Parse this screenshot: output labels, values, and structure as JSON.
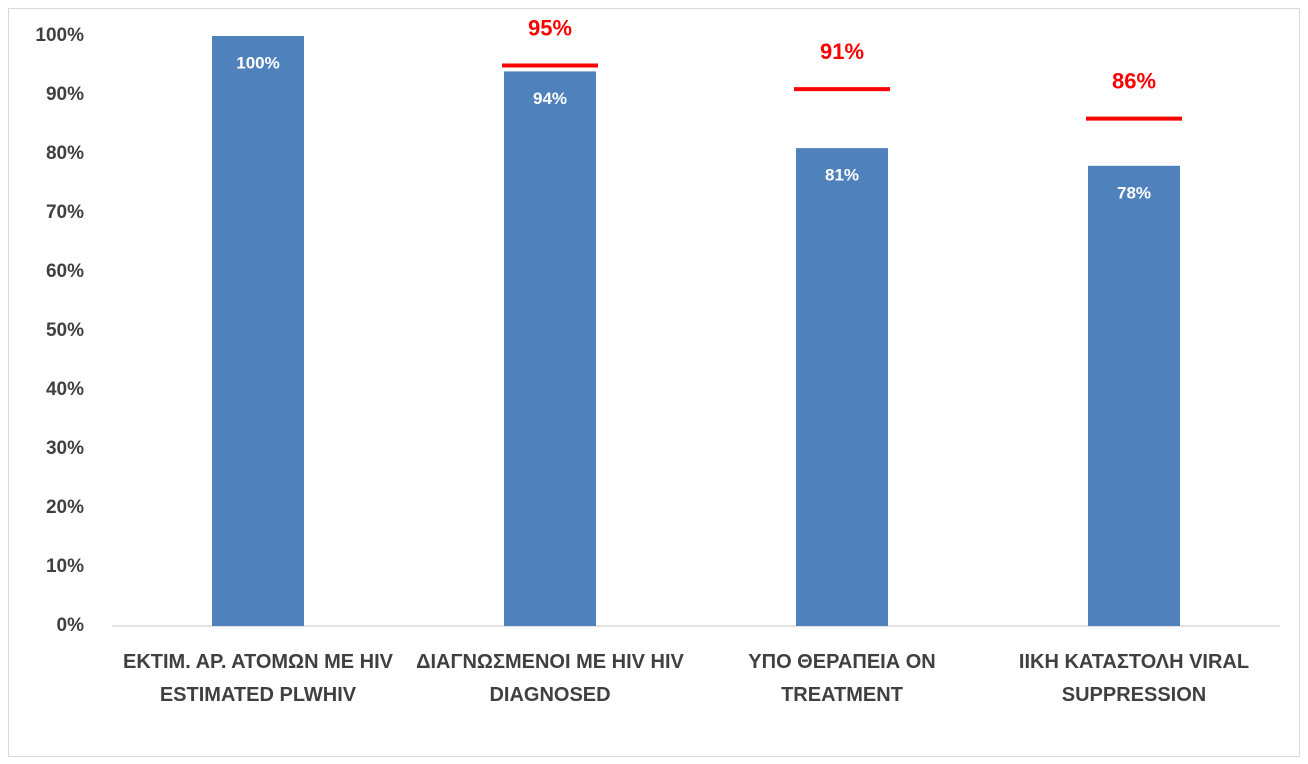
{
  "chart_data": {
    "type": "bar",
    "categories": [
      "ΕΚΤΙΜ. ΑΡ. ΑΤΟΜΩΝ ΜΕ HIV ESTIMATED PLWHIV",
      "ΔΙΑΓΝΩΣΜΕΝΟΙ ΜΕ HIV HIV DIAGNOSED",
      "ΥΠΟ ΘΕΡΑΠΕΙΑ ON TREATMENT",
      "ΙΙΚΗ ΚΑΤΑΣΤΟΛΗ VIRAL SUPPRESSION"
    ],
    "values": [
      100,
      94,
      81,
      78
    ],
    "value_labels": [
      "100%",
      "94%",
      "81%",
      "78%"
    ],
    "color": "#4f81bd",
    "targets": [
      null,
      95,
      91,
      86
    ],
    "target_labels": [
      null,
      "95%",
      "91%",
      "86%"
    ],
    "target_color": "#ff0000",
    "ylim": [
      0,
      100
    ],
    "yticks": [
      {
        "value": 0,
        "label": "0%"
      },
      {
        "value": 10,
        "label": "10%"
      },
      {
        "value": 20,
        "label": "20%"
      },
      {
        "value": 30,
        "label": "30%"
      },
      {
        "value": 40,
        "label": "40%"
      },
      {
        "value": 50,
        "label": "50%"
      },
      {
        "value": 60,
        "label": "60%"
      },
      {
        "value": 70,
        "label": "70%"
      },
      {
        "value": 80,
        "label": "80%"
      },
      {
        "value": 90,
        "label": "90%"
      },
      {
        "value": 100,
        "label": "100%"
      }
    ],
    "grid": false
  }
}
